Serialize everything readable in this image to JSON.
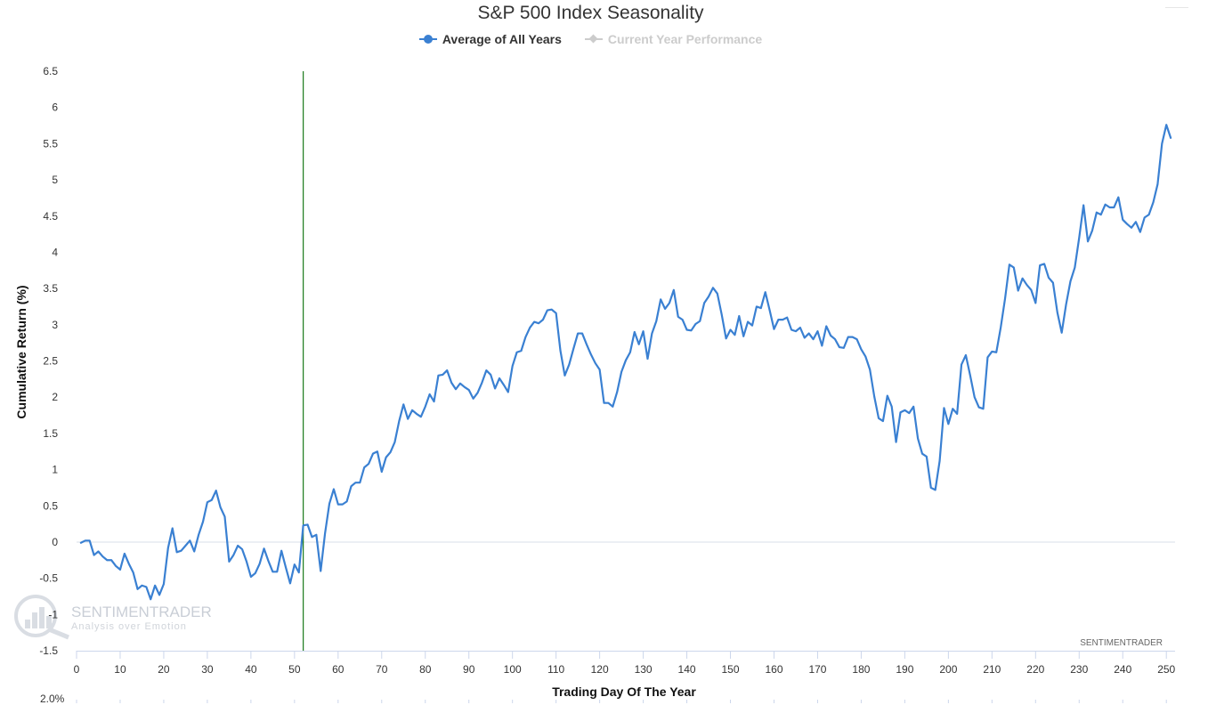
{
  "chart_data": {
    "type": "line",
    "title": "S&P 500 Index Seasonality",
    "xlabel": "Trading Day Of The Year",
    "ylabel": "Cumulative Return (%)",
    "xlim": [
      0,
      252
    ],
    "ylim": [
      -1.5,
      6.5
    ],
    "x_ticks": [
      0,
      10,
      20,
      30,
      40,
      50,
      60,
      70,
      80,
      90,
      100,
      110,
      120,
      130,
      140,
      150,
      160,
      170,
      180,
      190,
      200,
      210,
      220,
      230,
      240,
      250
    ],
    "y_ticks": [
      "-1.5",
      "-1",
      "-0.5",
      "0",
      "0.5",
      "1",
      "1.5",
      "2",
      "2.5",
      "3",
      "3.5",
      "4",
      "4.5",
      "5",
      "5.5",
      "6",
      "6.5"
    ],
    "current_day_marker": 52,
    "series": [
      {
        "name": "Average of All Years",
        "color": "#3a80d2",
        "visible": true,
        "x_start": 1,
        "values": [
          -0.01,
          0.02,
          0.02,
          -0.18,
          -0.13,
          -0.2,
          -0.25,
          -0.25,
          -0.33,
          -0.38,
          -0.16,
          -0.3,
          -0.42,
          -0.65,
          -0.6,
          -0.62,
          -0.79,
          -0.6,
          -0.73,
          -0.58,
          -0.08,
          0.19,
          -0.14,
          -0.12,
          -0.05,
          0.02,
          -0.13,
          0.1,
          0.28,
          0.55,
          0.58,
          0.71,
          0.48,
          0.35,
          -0.27,
          -0.18,
          -0.05,
          -0.1,
          -0.27,
          -0.48,
          -0.43,
          -0.3,
          -0.09,
          -0.26,
          -0.41,
          -0.41,
          -0.12,
          -0.35,
          -0.57,
          -0.31,
          -0.42,
          0.23,
          0.24,
          0.07,
          0.1,
          -0.4,
          0.12,
          0.53,
          0.73,
          0.52,
          0.52,
          0.56,
          0.77,
          0.82,
          0.82,
          1.03,
          1.08,
          1.22,
          1.25,
          0.97,
          1.17,
          1.24,
          1.38,
          1.67,
          1.9,
          1.7,
          1.82,
          1.77,
          1.73,
          1.87,
          2.04,
          1.94,
          2.3,
          2.31,
          2.37,
          2.2,
          2.11,
          2.19,
          2.14,
          2.1,
          1.98,
          2.06,
          2.2,
          2.37,
          2.31,
          2.12,
          2.26,
          2.17,
          2.07,
          2.43,
          2.62,
          2.64,
          2.83,
          2.96,
          3.04,
          3.02,
          3.07,
          3.2,
          3.21,
          3.16,
          2.64,
          2.3,
          2.45,
          2.67,
          2.88,
          2.88,
          2.73,
          2.59,
          2.47,
          2.38,
          1.92,
          1.92,
          1.87,
          2.07,
          2.35,
          2.51,
          2.62,
          2.9,
          2.73,
          2.91,
          2.53,
          2.88,
          3.05,
          3.35,
          3.22,
          3.3,
          3.48,
          3.11,
          3.07,
          2.93,
          2.92,
          3.01,
          3.05,
          3.3,
          3.39,
          3.51,
          3.43,
          3.14,
          2.81,
          2.93,
          2.86,
          3.12,
          2.84,
          3.04,
          2.99,
          3.25,
          3.23,
          3.45,
          3.2,
          2.94,
          3.07,
          3.07,
          3.1,
          2.93,
          2.91,
          2.96,
          2.82,
          2.88,
          2.8,
          2.91,
          2.71,
          2.98,
          2.85,
          2.8,
          2.69,
          2.68,
          2.83,
          2.83,
          2.8,
          2.66,
          2.56,
          2.38,
          2.01,
          1.71,
          1.67,
          2.02,
          1.87,
          1.38,
          1.79,
          1.82,
          1.78,
          1.87,
          1.43,
          1.22,
          1.18,
          0.75,
          0.72,
          1.12,
          1.85,
          1.63,
          1.84,
          1.77,
          2.45,
          2.58,
          2.3,
          2.0,
          1.86,
          1.84,
          2.55,
          2.63,
          2.62,
          2.96,
          3.36,
          3.83,
          3.79,
          3.47,
          3.64,
          3.55,
          3.48,
          3.3,
          3.82,
          3.84,
          3.65,
          3.58,
          3.17,
          2.89,
          3.28,
          3.6,
          3.79,
          4.2,
          4.65,
          4.15,
          4.3,
          4.55,
          4.52,
          4.66,
          4.62,
          4.62,
          4.76,
          4.45,
          4.39,
          4.34,
          4.42,
          4.28,
          4.48,
          4.52,
          4.69,
          4.94,
          5.5,
          5.76,
          5.58
        ]
      },
      {
        "name": "Current Year Performance",
        "color": "#cccccc",
        "visible": false,
        "values": []
      }
    ],
    "credit": "SENTIMENTRADER",
    "next_chart_label": "2.0%"
  },
  "watermark": {
    "brand": "SENTIMENTRADER",
    "tagline": "Analysis over Emotion"
  },
  "colors": {
    "line": "#3a80d2",
    "marker": "#1a7a1a",
    "zero_line": "#d8dfe8",
    "axis": "#ccd6eb"
  }
}
